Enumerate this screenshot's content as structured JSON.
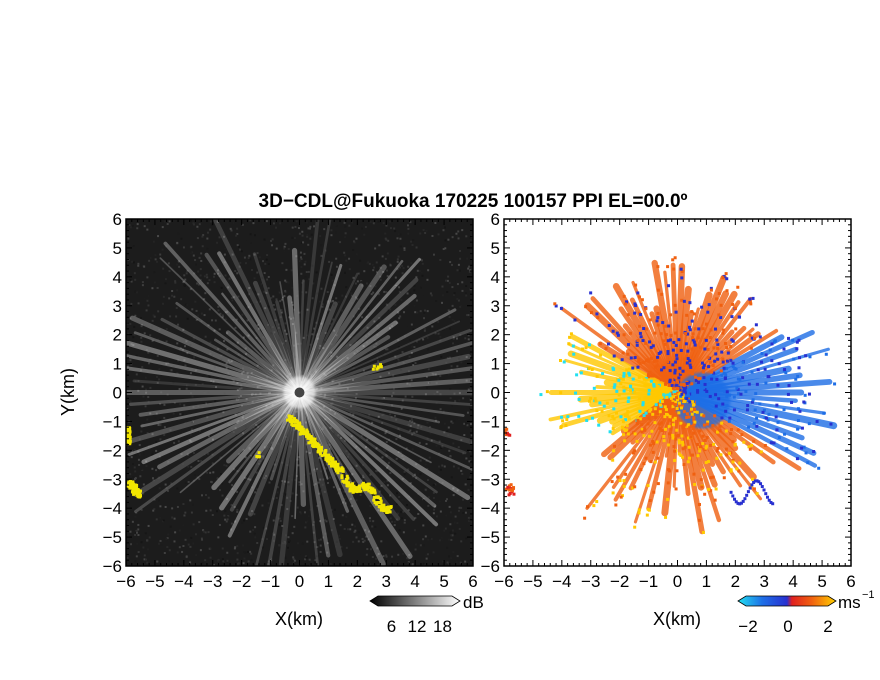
{
  "title": "3D−CDL@Fukuoka 170225 100157 PPI EL=00.0º",
  "colors": {
    "left_background": "#1c1c1c",
    "echo_white": "#ffffff",
    "yellow_mask": "#f2e600",
    "right_background": "#ffffff",
    "velocity_negative": "#1e6ee6",
    "velocity_strong_negative": "#2830d0",
    "velocity_positive": "#f06010",
    "velocity_weak_positive": "#ffc800",
    "velocity_cyan": "#22e0f0"
  },
  "chart_data": [
    {
      "type": "heatmap",
      "name": "reflectivity",
      "xlabel": "X(km)",
      "ylabel": "Y(km)",
      "xlim": [
        -6,
        6
      ],
      "ylim": [
        -6,
        6
      ],
      "xticks": [
        "−6",
        "−5",
        "−4",
        "−3",
        "−2",
        "−1",
        "0",
        "1",
        "2",
        "3",
        "4",
        "5",
        "6"
      ],
      "yticks": [
        "6",
        "5",
        "4",
        "3",
        "2",
        "1",
        "0",
        "−1",
        "−2",
        "−3",
        "−4",
        "−5",
        "−6"
      ],
      "colorbar": {
        "unit": "dB",
        "ticks": [
          "6",
          "12",
          "18"
        ],
        "range": [
          0,
          24
        ]
      }
    },
    {
      "type": "heatmap",
      "name": "doppler-velocity",
      "xlabel": "X(km)",
      "xlim": [
        -6,
        6
      ],
      "ylim": [
        -6,
        6
      ],
      "xticks": [
        "−6",
        "−5",
        "−4",
        "−3",
        "−2",
        "−1",
        "0",
        "1",
        "2",
        "3",
        "4",
        "5",
        "6"
      ],
      "yticks": [
        "6",
        "5",
        "4",
        "3",
        "2",
        "1",
        "0",
        "−1",
        "−2",
        "−3",
        "−4",
        "−5",
        "−6"
      ],
      "colorbar": {
        "unit": "ms",
        "unit_exponent": "−1",
        "ticks": [
          "−2",
          "0",
          "2"
        ],
        "range": [
          -3,
          3
        ]
      }
    }
  ]
}
